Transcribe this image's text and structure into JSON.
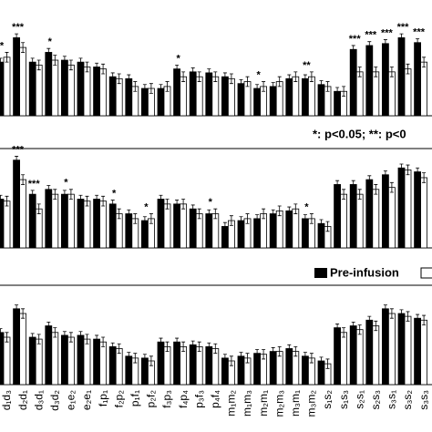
{
  "chart_data": [
    {
      "type": "bar",
      "ylim": [
        0,
        100
      ],
      "note": "*: p<0.05; **: p<0",
      "series": [
        {
          "name": "Pre-infusion",
          "color": "#000000",
          "values": [
            55,
            80,
            55,
            65,
            57,
            55,
            50,
            40,
            38,
            28,
            28,
            48,
            45,
            44,
            40,
            33,
            28,
            30,
            38,
            38,
            32,
            25,
            68,
            72,
            74,
            80,
            75
          ],
          "errors": [
            4,
            4,
            4,
            4,
            4,
            4,
            4,
            4,
            4,
            4,
            4,
            4,
            4,
            4,
            4,
            4,
            4,
            4,
            4,
            4,
            4,
            4,
            4,
            4,
            4,
            4,
            4
          ]
        },
        {
          "color": "#ffffff",
          "values": [
            60,
            70,
            52,
            57,
            52,
            50,
            48,
            38,
            30,
            28,
            30,
            40,
            40,
            40,
            38,
            35,
            30,
            35,
            40,
            40,
            30,
            25,
            45,
            45,
            45,
            48,
            55
          ],
          "errors": [
            5,
            5,
            5,
            5,
            5,
            5,
            5,
            5,
            5,
            5,
            5,
            5,
            5,
            5,
            5,
            5,
            5,
            5,
            5,
            5,
            5,
            5,
            5,
            5,
            5,
            5,
            5
          ]
        }
      ],
      "significance": [
        "*",
        "***",
        null,
        "*",
        null,
        null,
        null,
        null,
        null,
        null,
        null,
        "*",
        null,
        null,
        null,
        null,
        "*",
        null,
        null,
        "**",
        null,
        null,
        "***",
        "***",
        "***",
        "***",
        "***"
      ]
    },
    {
      "type": "bar",
      "ylim": [
        0,
        100
      ],
      "series": [
        {
          "name": "Pre-infusion",
          "color": "#000000",
          "values": [
            50,
            90,
            55,
            60,
            55,
            50,
            50,
            45,
            35,
            28,
            50,
            45,
            40,
            35,
            22,
            28,
            30,
            35,
            38,
            30,
            25,
            65,
            65,
            70,
            75,
            82,
            78
          ],
          "errors": [
            4,
            4,
            4,
            4,
            4,
            4,
            4,
            4,
            4,
            4,
            4,
            4,
            4,
            4,
            4,
            4,
            4,
            4,
            4,
            4,
            4,
            4,
            4,
            4,
            4,
            4,
            4
          ]
        },
        {
          "color": "#ffffff",
          "values": [
            48,
            70,
            40,
            55,
            55,
            48,
            48,
            35,
            30,
            30,
            45,
            45,
            35,
            35,
            28,
            30,
            35,
            38,
            40,
            30,
            22,
            55,
            55,
            60,
            62,
            80,
            72
          ],
          "errors": [
            5,
            5,
            5,
            5,
            5,
            5,
            5,
            5,
            5,
            5,
            5,
            5,
            5,
            5,
            5,
            5,
            5,
            5,
            5,
            5,
            5,
            5,
            5,
            5,
            5,
            5,
            5
          ]
        }
      ],
      "significance": [
        null,
        "***",
        "***",
        null,
        "*",
        null,
        null,
        "*",
        null,
        "*",
        null,
        null,
        null,
        "*",
        null,
        null,
        null,
        null,
        null,
        "*",
        null,
        null,
        null,
        null,
        null,
        null,
        null
      ]
    },
    {
      "type": "bar",
      "ylim": [
        0,
        100
      ],
      "legend": "Pre-infusion",
      "categories": [
        "d₁d₃",
        "d₂d₁",
        "d₃d₁",
        "d₃d₂",
        "e₁e₂",
        "e₂e₁",
        "f₁p₁",
        "f₂p₂",
        "p₁f₁",
        "p₂f₂",
        "f₃p₃",
        "f₄p₄",
        "p₃f₃",
        "p₄f₄",
        "m₁m₂",
        "m₁m₃",
        "m₂m₁",
        "m₂m₃",
        "m₃m₁",
        "m₃m₂",
        "s₁s₂",
        "s₁s₃",
        "s₂s₁",
        "s₂s₃",
        "s₃s₁",
        "s₃s₂",
        "s₃s₃"
      ],
      "series": [
        {
          "name": "Pre-infusion",
          "color": "#000000",
          "values": [
            55,
            80,
            50,
            62,
            52,
            52,
            48,
            40,
            30,
            28,
            45,
            45,
            42,
            40,
            28,
            30,
            33,
            35,
            38,
            30,
            25,
            60,
            62,
            68,
            80,
            75,
            70
          ],
          "errors": [
            4,
            4,
            4,
            4,
            4,
            4,
            4,
            4,
            4,
            4,
            4,
            4,
            4,
            4,
            4,
            4,
            4,
            4,
            4,
            4,
            4,
            4,
            4,
            4,
            4,
            4,
            4
          ]
        },
        {
          "color": "#ffffff",
          "values": [
            50,
            75,
            48,
            55,
            50,
            48,
            45,
            38,
            28,
            25,
            40,
            40,
            40,
            38,
            25,
            28,
            32,
            35,
            35,
            28,
            22,
            55,
            58,
            62,
            75,
            72,
            68
          ],
          "errors": [
            5,
            5,
            5,
            5,
            5,
            5,
            5,
            5,
            5,
            5,
            5,
            5,
            5,
            5,
            5,
            5,
            5,
            5,
            5,
            5,
            5,
            5,
            5,
            5,
            5,
            5,
            5
          ]
        }
      ]
    }
  ]
}
